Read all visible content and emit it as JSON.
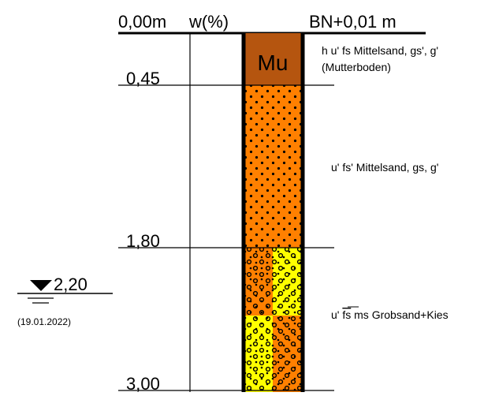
{
  "header": {
    "depth_top": "0,00m",
    "water_content": "w(%)",
    "elevation": "BN+0,01 m"
  },
  "depths": {
    "d1": "0,45",
    "d2": "1,80",
    "d3": "3,00"
  },
  "groundwater": {
    "level": "2,20",
    "date": "(19.01.2022)"
  },
  "layers": [
    {
      "code": "Mu",
      "desc_line1": "h u' fs Mittelsand, gs', g'",
      "desc_line2": "(Mutterboden)",
      "color": "#b5550f"
    },
    {
      "code": "",
      "desc_line1": "u' fs' Mittelsand, gs, g'",
      "color": "#ff8000"
    },
    {
      "code": "",
      "desc_prefix": "u' ",
      "desc_overlined": "fs",
      "desc_suffix": " ms Grobsand+Kies",
      "color_a": "#ffff00",
      "color_b": "#ff8000"
    }
  ]
}
